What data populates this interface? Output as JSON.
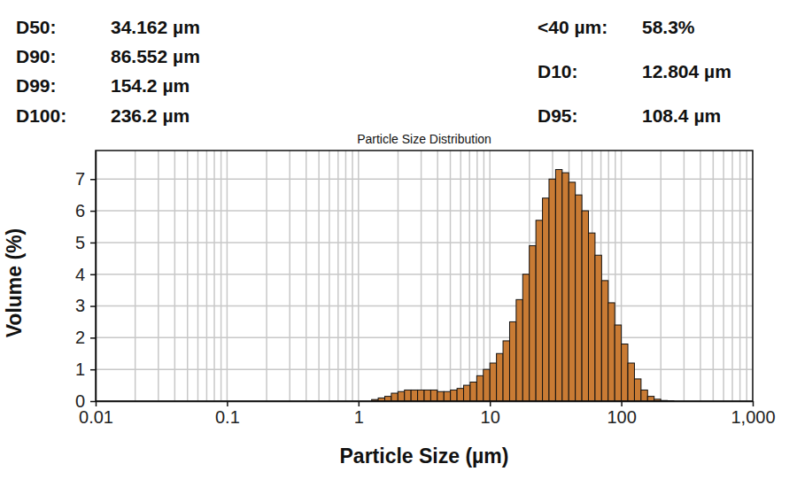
{
  "chart_data": {
    "type": "histogram",
    "title": "Particle Size Distribution",
    "x_label": "Particle Size (µm)",
    "y_label": "Volume (%)",
    "annotations": [
      [
        {
          "label": "D50:",
          "text": "34.162 µm"
        },
        {
          "label": "D90:",
          "text": "86.552 µm"
        },
        {
          "label": "D99:",
          "text": "154.2 µm"
        },
        {
          "label": "D100:",
          "text": "236.2 µm"
        }
      ],
      [
        {
          "label": "<40 µm:",
          "text": "58.3%"
        },
        {
          "label": "D10:",
          "text": "12.804 µm"
        },
        {
          "label": "D95:",
          "text": "108.4 µm"
        }
      ]
    ],
    "bins": [
      1.259,
      1.413,
      1.585,
      1.778,
      1.995,
      2.239,
      2.512,
      2.818,
      3.162,
      3.548,
      3.981,
      4.467,
      5.012,
      5.623,
      6.31,
      7.079,
      7.943,
      8.913,
      10,
      11.22,
      12.59,
      14.13,
      15.85,
      17.78,
      19.95,
      22.39,
      25.12,
      28.18,
      31.62,
      35.48,
      39.81,
      44.67,
      50.12,
      56.23,
      63.1,
      70.79,
      79.43,
      89.13,
      100,
      112.2,
      125.9,
      141.3,
      158.5,
      177.8,
      199.5,
      223.9,
      251.2
    ],
    "values": [
      0.05,
      0.1,
      0.15,
      0.25,
      0.3,
      0.35,
      0.35,
      0.35,
      0.35,
      0.35,
      0.3,
      0.3,
      0.35,
      0.4,
      0.5,
      0.6,
      0.8,
      1.0,
      1.2,
      1.5,
      1.9,
      2.5,
      3.2,
      4.0,
      4.9,
      5.7,
      6.4,
      7.0,
      7.3,
      7.2,
      6.9,
      6.5,
      6.0,
      5.3,
      4.6,
      3.8,
      3.1,
      2.4,
      1.8,
      1.2,
      0.7,
      0.35,
      0.15,
      0.06,
      0.02,
      0.01
    ],
    "color": "#c97b34",
    "log": "x",
    "grid": true,
    "xlim": [
      0.01,
      1000
    ],
    "ylim": [
      0,
      7.9
    ],
    "xticks": [
      0.01,
      0.1,
      1,
      10,
      100,
      {
        "value": 1000,
        "label": "1,000"
      }
    ],
    "x_minor_ticks": [
      0.02,
      0.03,
      0.04,
      0.05,
      0.06,
      0.07,
      0.08,
      0.09,
      0.2,
      0.3,
      0.4,
      0.5,
      0.6,
      0.7,
      0.8,
      0.9,
      2,
      3,
      4,
      5,
      6,
      7,
      8,
      9,
      20,
      30,
      40,
      50,
      60,
      70,
      80,
      90,
      200,
      300,
      400,
      500,
      600,
      700,
      800,
      900
    ],
    "yticks": [
      0,
      1,
      2,
      3,
      4,
      5,
      6,
      7
    ]
  }
}
